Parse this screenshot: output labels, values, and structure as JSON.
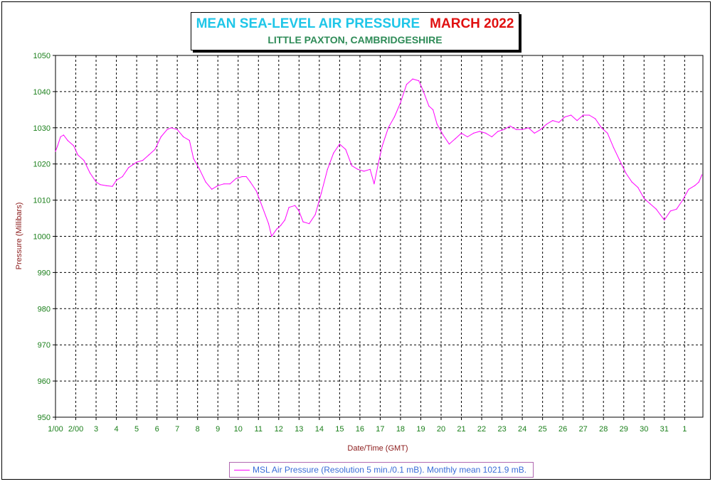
{
  "title": {
    "main": "MEAN SEA-LEVEL AIR PRESSURE",
    "month": "MARCH 2022",
    "subtitle": "LITTLE PAXTON, CAMBRIDGESHIRE"
  },
  "legend": {
    "label": "MSL Air Pressure (Resolution 5 min./0.1 mB). Monthly mean 1021.9 mB."
  },
  "colors": {
    "series": "#ff00ff",
    "axis_text": "#1a7f1a",
    "axis_title": "#8b1a1a",
    "grid": "#000000"
  },
  "chart_data": {
    "type": "line",
    "title": "MEAN SEA-LEVEL AIR PRESSURE   MARCH 2022",
    "subtitle": "LITTLE PAXTON, CAMBRIDGESHIRE",
    "xlabel": "Date/Time (GMT)",
    "ylabel": "Pressure (Millibars)",
    "ylim": [
      950,
      1050
    ],
    "xlim": [
      1,
      32.9
    ],
    "x_ticks": [
      1,
      2,
      3,
      4,
      5,
      6,
      7,
      8,
      9,
      10,
      11,
      12,
      13,
      14,
      15,
      16,
      17,
      18,
      19,
      20,
      21,
      22,
      23,
      24,
      25,
      26,
      27,
      28,
      29,
      30,
      31,
      32
    ],
    "x_tick_labels": [
      "1/00",
      "2/00",
      "3",
      "4",
      "5",
      "6",
      "7",
      "8",
      "9",
      "10",
      "11",
      "12",
      "13",
      "14",
      "15",
      "16",
      "17",
      "18",
      "19",
      "20",
      "21",
      "22",
      "23",
      "24",
      "25",
      "26",
      "27",
      "28",
      "29",
      "30",
      "31",
      "1"
    ],
    "y_ticks": [
      950,
      960,
      970,
      980,
      990,
      1000,
      1010,
      1020,
      1030,
      1040,
      1050
    ],
    "grid": true,
    "legend_position": "bottom-center",
    "series": [
      {
        "name": "MSL Air Pressure (Resolution 5 min./0.1 mB). Monthly mean 1021.9 mB.",
        "color": "#ff00ff",
        "x": [
          1.0,
          1.1,
          1.25,
          1.4,
          1.6,
          1.9,
          2.1,
          2.4,
          2.7,
          3.0,
          3.2,
          3.5,
          3.8,
          4.0,
          4.3,
          4.6,
          5.0,
          5.3,
          5.6,
          5.9,
          6.2,
          6.5,
          6.7,
          7.0,
          7.3,
          7.6,
          7.8,
          8.1,
          8.4,
          8.7,
          9.0,
          9.3,
          9.6,
          9.9,
          10.2,
          10.4,
          10.6,
          10.9,
          11.2,
          11.5,
          11.65,
          11.9,
          12.1,
          12.3,
          12.5,
          12.8,
          13.0,
          13.2,
          13.5,
          13.8,
          14.1,
          14.4,
          14.7,
          15.0,
          15.3,
          15.6,
          15.9,
          16.2,
          16.5,
          16.7,
          16.9,
          17.1,
          17.4,
          17.7,
          18.0,
          18.3,
          18.6,
          18.9,
          19.1,
          19.4,
          19.6,
          19.8,
          20.1,
          20.4,
          20.7,
          21.0,
          21.3,
          21.6,
          21.9,
          22.2,
          22.5,
          22.8,
          23.1,
          23.4,
          23.7,
          24.0,
          24.3,
          24.6,
          24.9,
          25.2,
          25.5,
          25.8,
          26.1,
          26.4,
          26.7,
          27.0,
          27.3,
          27.6,
          27.9,
          28.2,
          28.5,
          28.8,
          29.1,
          29.4,
          29.7,
          30.0,
          30.3,
          30.6,
          30.8,
          31.0,
          31.3,
          31.6,
          31.9,
          32.2,
          32.5,
          32.7,
          32.85
        ],
        "y": [
          1023.5,
          1025.0,
          1027.5,
          1028.0,
          1026.5,
          1025.0,
          1022.5,
          1021.0,
          1017.5,
          1015.0,
          1014.3,
          1014.0,
          1013.8,
          1015.5,
          1016.5,
          1019.0,
          1020.5,
          1021.0,
          1022.5,
          1024.0,
          1027.5,
          1029.5,
          1030.0,
          1029.5,
          1027.5,
          1026.5,
          1021.5,
          1018.5,
          1015.0,
          1013.0,
          1014.0,
          1014.5,
          1014.5,
          1016.0,
          1016.5,
          1016.5,
          1015.0,
          1012.5,
          1008.0,
          1003.5,
          1000.0,
          1002.0,
          1003.0,
          1004.5,
          1008.0,
          1008.5,
          1007.0,
          1004.0,
          1003.5,
          1006.0,
          1012.0,
          1018.5,
          1023.0,
          1025.5,
          1024.0,
          1019.5,
          1018.5,
          1018.0,
          1018.5,
          1014.5,
          1020.0,
          1025.0,
          1030.0,
          1033.0,
          1037.0,
          1042.0,
          1043.5,
          1043.0,
          1040.5,
          1036.0,
          1035.0,
          1031.0,
          1028.0,
          1025.5,
          1027.0,
          1028.5,
          1027.5,
          1028.5,
          1029.0,
          1028.5,
          1027.5,
          1029.0,
          1029.5,
          1030.5,
          1029.5,
          1029.5,
          1030.0,
          1028.5,
          1029.5,
          1031.0,
          1032.0,
          1031.5,
          1033.0,
          1033.5,
          1032.0,
          1033.5,
          1033.5,
          1032.5,
          1030.0,
          1028.5,
          1024.5,
          1021.0,
          1017.5,
          1015.0,
          1013.5,
          1010.5,
          1009.0,
          1007.5,
          1006.0,
          1004.5,
          1007.0,
          1007.5,
          1010.0,
          1013.0,
          1014.0,
          1015.0,
          1017.0
        ]
      }
    ]
  }
}
